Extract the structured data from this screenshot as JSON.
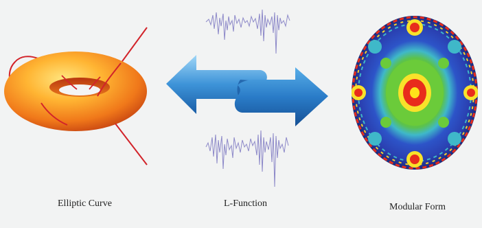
{
  "labels": {
    "elliptic_curve": "Elliptic Curve",
    "l_function": "L-Function",
    "modular_form": "Modular Form"
  },
  "colors": {
    "background": "#f2f3f3",
    "torus_light": "#ffd84a",
    "torus_mid": "#f28a1a",
    "torus_dark": "#c23a10",
    "curve": "#d2232a",
    "arrow_light": "#7fc4f0",
    "arrow_dark": "#1d5fa8",
    "waveform": "#8c88c8",
    "disc_blue": "#2e4fc9",
    "disc_green": "#6bcb3a",
    "disc_center": "#e0241d"
  }
}
